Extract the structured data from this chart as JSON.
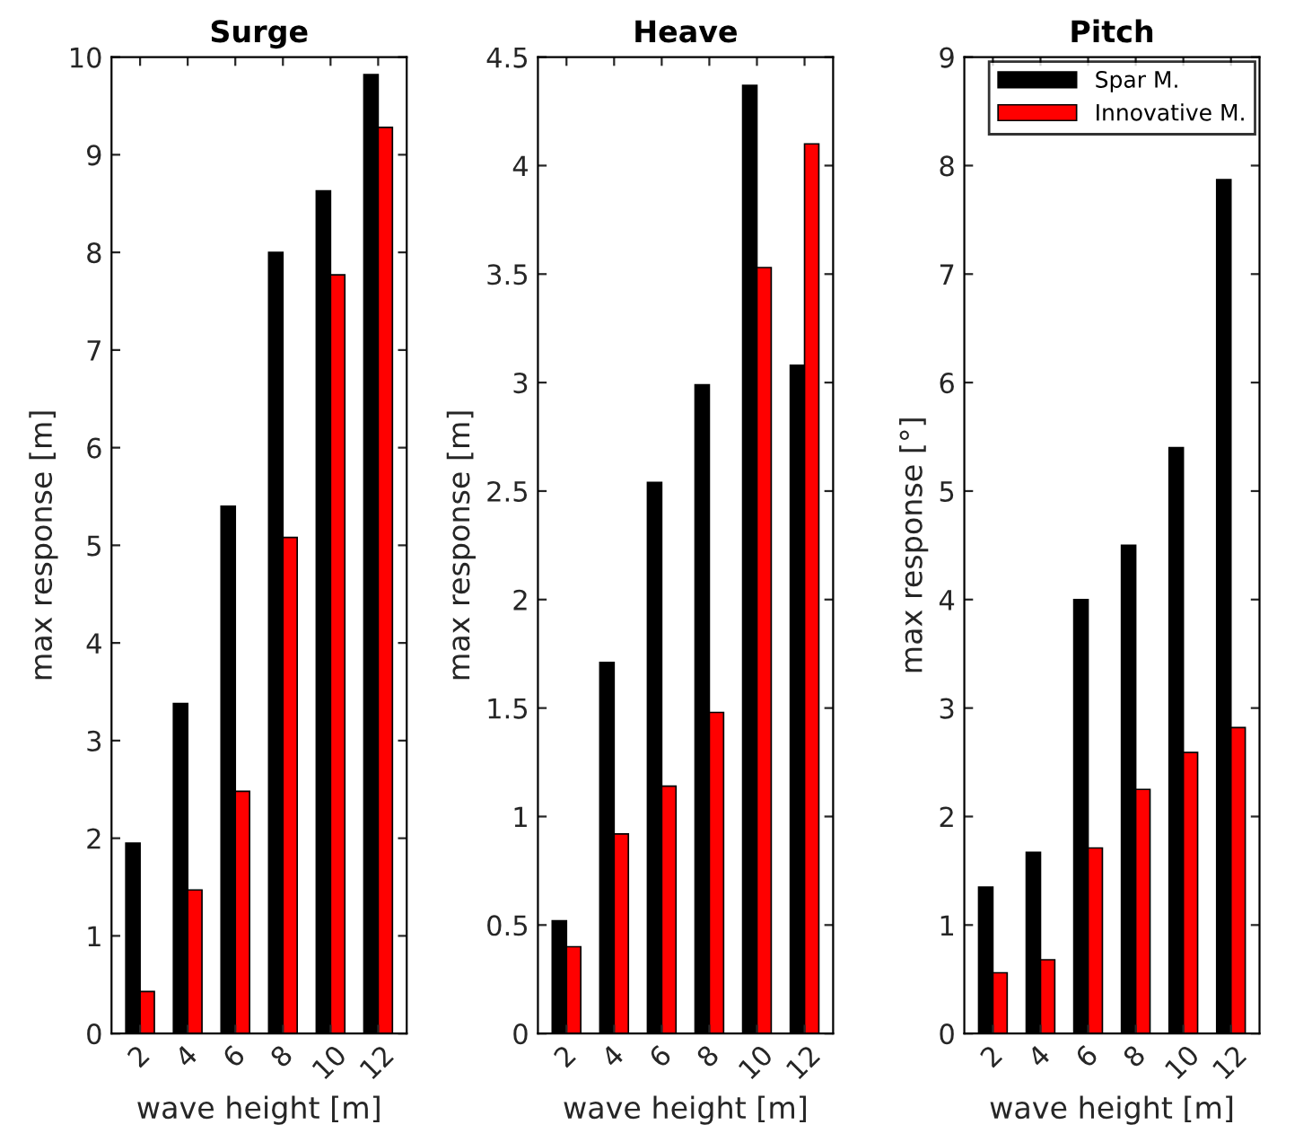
{
  "chart_data": [
    {
      "type": "bar",
      "title": "Surge",
      "xlabel": "wave height [m]",
      "ylabel": "max response [m]",
      "categories": [
        "2",
        "4",
        "6",
        "8",
        "10",
        "12"
      ],
      "ylim": [
        0,
        10
      ],
      "yticks": [
        0,
        1,
        2,
        3,
        4,
        5,
        6,
        7,
        8,
        9,
        10
      ],
      "grid": false,
      "legend": false,
      "series": [
        {
          "color": "#000000",
          "values": [
            1.95,
            3.38,
            5.4,
            8.0,
            8.63,
            9.82
          ]
        },
        {
          "color": "#ff0000",
          "values": [
            0.43,
            1.47,
            2.48,
            5.08,
            7.77,
            9.28
          ]
        }
      ]
    },
    {
      "type": "bar",
      "title": "Heave",
      "xlabel": "wave height [m]",
      "ylabel": "max response [m]",
      "categories": [
        "2",
        "4",
        "6",
        "8",
        "10",
        "12"
      ],
      "ylim": [
        0,
        4.5
      ],
      "yticks": [
        0,
        0.5,
        1,
        1.5,
        2,
        2.5,
        3,
        3.5,
        4,
        4.5
      ],
      "grid": false,
      "legend": false,
      "series": [
        {
          "color": "#000000",
          "values": [
            0.52,
            1.71,
            2.54,
            2.99,
            4.37,
            3.08
          ]
        },
        {
          "color": "#ff0000",
          "values": [
            0.4,
            0.92,
            1.14,
            1.48,
            3.53,
            4.1
          ]
        }
      ]
    },
    {
      "type": "bar",
      "title": "Pitch",
      "xlabel": "wave height [m]",
      "ylabel": "max response [°]",
      "categories": [
        "2",
        "4",
        "6",
        "8",
        "10",
        "12"
      ],
      "ylim": [
        0,
        9
      ],
      "yticks": [
        0,
        1,
        2,
        3,
        4,
        5,
        6,
        7,
        8,
        9
      ],
      "grid": false,
      "legend": "top right",
      "series": [
        {
          "name": "Spar M.",
          "color": "#000000",
          "values": [
            1.35,
            1.67,
            4.0,
            4.5,
            5.4,
            7.87
          ]
        },
        {
          "name": "Innovative M.",
          "color": "#ff0000",
          "values": [
            0.56,
            0.68,
            1.71,
            2.25,
            2.59,
            2.82
          ]
        }
      ]
    }
  ]
}
